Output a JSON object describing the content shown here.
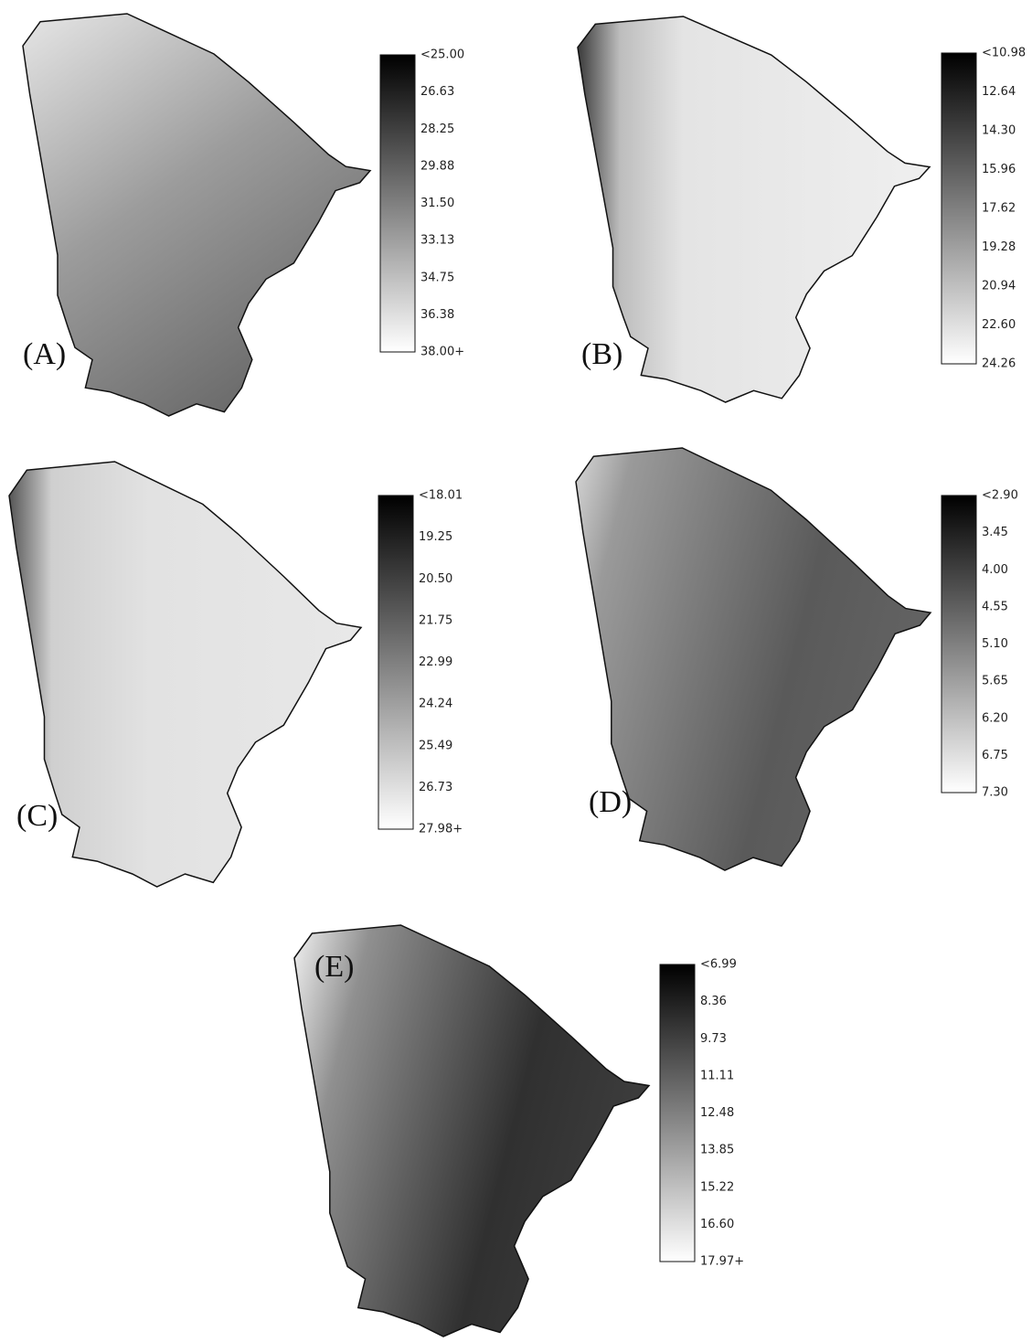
{
  "panels": [
    {
      "label": "(A)",
      "legend": [
        "<25.00",
        "26.63",
        "28.25",
        "29.88",
        "31.50",
        "33.13",
        "34.75",
        "36.38",
        "38.00+"
      ]
    },
    {
      "label": "(B)",
      "legend": [
        "<10.98",
        "12.64",
        "14.30",
        "15.96",
        "17.62",
        "19.28",
        "20.94",
        "22.60",
        "24.26"
      ]
    },
    {
      "label": "(C)",
      "legend": [
        "<18.01",
        "19.25",
        "20.50",
        "21.75",
        "22.99",
        "24.24",
        "25.49",
        "26.73",
        "27.98+"
      ]
    },
    {
      "label": "(D)",
      "legend": [
        "<2.90",
        "3.45",
        "4.00",
        "4.55",
        "5.10",
        "5.65",
        "6.20",
        "6.75",
        "7.30"
      ]
    },
    {
      "label": "(E)",
      "legend": [
        "<6.99",
        "8.36",
        "9.73",
        "11.11",
        "12.48",
        "13.85",
        "15.22",
        "16.60",
        "17.97+"
      ]
    }
  ]
}
